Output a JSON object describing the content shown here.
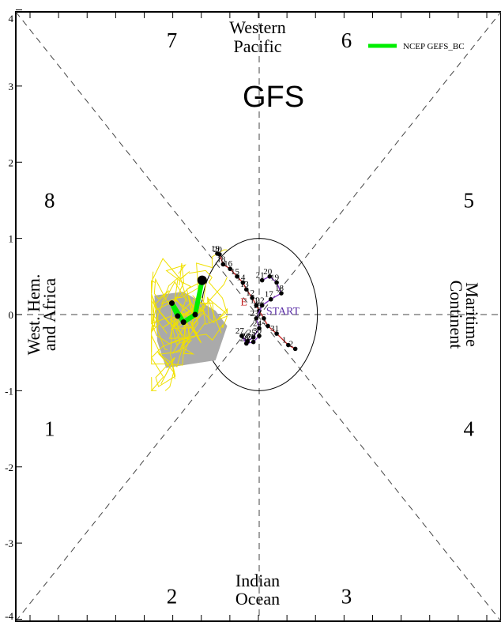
{
  "chart_data": {
    "type": "scatter",
    "title": "GFS",
    "xlim": [
      -4,
      4
    ],
    "ylim": [
      -4,
      4
    ],
    "y_tick_labels": [
      "-4",
      "-3",
      "-2",
      "-1",
      "0",
      "1",
      "2",
      "3",
      "4"
    ],
    "y_tick_values": [
      -4,
      -3,
      -2,
      -1,
      0,
      1,
      2,
      3,
      4
    ],
    "phase_numbers": [
      {
        "label": "1",
        "x": -3.6,
        "y": -1.5
      },
      {
        "label": "2",
        "x": -1.5,
        "y": -3.7
      },
      {
        "label": "3",
        "x": 1.5,
        "y": -3.7
      },
      {
        "label": "4",
        "x": 3.6,
        "y": -1.5
      },
      {
        "label": "5",
        "x": 3.6,
        "y": 1.5
      },
      {
        "label": "6",
        "x": 1.5,
        "y": 3.6
      },
      {
        "label": "7",
        "x": -1.5,
        "y": 3.6
      },
      {
        "label": "8",
        "x": -3.6,
        "y": 1.5
      }
    ],
    "regions": {
      "top": [
        "Western",
        "Pacific"
      ],
      "bottom": [
        "Indian",
        "Ocean"
      ],
      "left": [
        "West. Hem.",
        "and Africa"
      ],
      "right": [
        "Maritime",
        "Continent"
      ]
    },
    "legend": {
      "label": "NCEP GEFS_BC",
      "color": "#00ee00"
    },
    "unit_circle_radius": 1,
    "series": [
      {
        "name": "observed",
        "color": "#000000",
        "points": [
          {
            "x": -0.72,
            "y": 0.8,
            "label": "19"
          },
          {
            "x": -0.68,
            "y": 0.79,
            "label": "20"
          },
          {
            "x": -0.62,
            "y": 0.66,
            "label": "18"
          },
          {
            "x": -0.5,
            "y": 0.6,
            "label": "16"
          },
          {
            "x": -0.38,
            "y": 0.5,
            "label": "15"
          },
          {
            "x": -0.28,
            "y": 0.42,
            "label": "14"
          },
          {
            "x": -0.22,
            "y": 0.33,
            "label": "13"
          },
          {
            "x": -0.12,
            "y": 0.22,
            "label": "12"
          },
          {
            "x": -0.05,
            "y": 0.12,
            "label": "11"
          },
          {
            "x": 0.0,
            "y": 0.05,
            "label": "10"
          },
          {
            "x": 0.08,
            "y": -0.05,
            "label": "1"
          },
          {
            "x": 0.15,
            "y": -0.15,
            "label": "2"
          },
          {
            "x": 0.3,
            "y": -0.25,
            "label": "31"
          },
          {
            "x": 0.5,
            "y": -0.4,
            "label": "1"
          },
          {
            "x": 0.62,
            "y": -0.45,
            "label": "2"
          }
        ]
      },
      {
        "name": "forecast",
        "color": "#7b2fbf",
        "points": [
          {
            "x": 0.05,
            "y": 0.45,
            "label": "21"
          },
          {
            "x": 0.18,
            "y": 0.5,
            "label": "20"
          },
          {
            "x": 0.3,
            "y": 0.42,
            "label": "19"
          },
          {
            "x": 0.38,
            "y": 0.28,
            "label": "18"
          },
          {
            "x": 0.2,
            "y": 0.2,
            "label": "17"
          },
          {
            "x": 0.05,
            "y": 0.12,
            "label": "22"
          },
          {
            "x": -0.05,
            "y": -0.05,
            "label": "23"
          },
          {
            "x": 0.0,
            "y": -0.18,
            "label": "24"
          },
          {
            "x": -0.1,
            "y": -0.3,
            "label": "25"
          },
          {
            "x": -0.2,
            "y": -0.35,
            "label": "26"
          },
          {
            "x": -0.3,
            "y": -0.28,
            "label": "27"
          },
          {
            "x": -0.22,
            "y": -0.38,
            "label": "28"
          },
          {
            "x": -0.1,
            "y": -0.36,
            "label": "29"
          },
          {
            "x": 0.0,
            "y": -0.28,
            "label": "30"
          }
        ]
      },
      {
        "name": "NCEP GEFS_BC",
        "color": "#00ee00",
        "points": [
          {
            "x": -0.98,
            "y": 0.45
          },
          {
            "x": -1.1,
            "y": 0.0
          },
          {
            "x": -1.3,
            "y": -0.1
          },
          {
            "x": -1.5,
            "y": 0.15
          },
          {
            "x": -1.4,
            "y": -0.02
          }
        ]
      }
    ],
    "spread_polygon": [
      [
        -1.8,
        0.25
      ],
      [
        -1.3,
        0.3
      ],
      [
        -0.75,
        0.05
      ],
      [
        -0.55,
        -0.15
      ],
      [
        -0.75,
        -0.6
      ],
      [
        -1.6,
        -0.7
      ],
      [
        -1.75,
        -0.35
      ]
    ],
    "text_annotations": [
      {
        "text": "START",
        "x": 0.12,
        "y": 0.0,
        "color": "#5a2ea6"
      },
      {
        "text": "E",
        "x": -0.32,
        "y": 0.12,
        "color": "#c02020"
      }
    ]
  }
}
